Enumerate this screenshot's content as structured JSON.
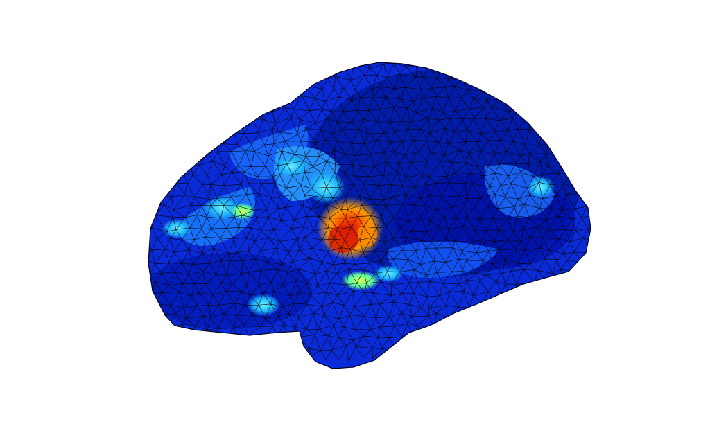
{
  "figure": {
    "subject": "brain-surface-mesh",
    "view": "lateral",
    "colormap": "jet",
    "background": "#ffffff",
    "mesh_edge_color": "#000000",
    "colormap_stops": [
      {
        "t": 0.0,
        "color": "#00008f"
      },
      {
        "t": 0.125,
        "color": "#0000ff"
      },
      {
        "t": 0.375,
        "color": "#00ffff"
      },
      {
        "t": 0.625,
        "color": "#ffff00"
      },
      {
        "t": 0.875,
        "color": "#ff0000"
      },
      {
        "t": 1.0,
        "color": "#800000"
      }
    ],
    "activation_peak_level": 0.9
  }
}
